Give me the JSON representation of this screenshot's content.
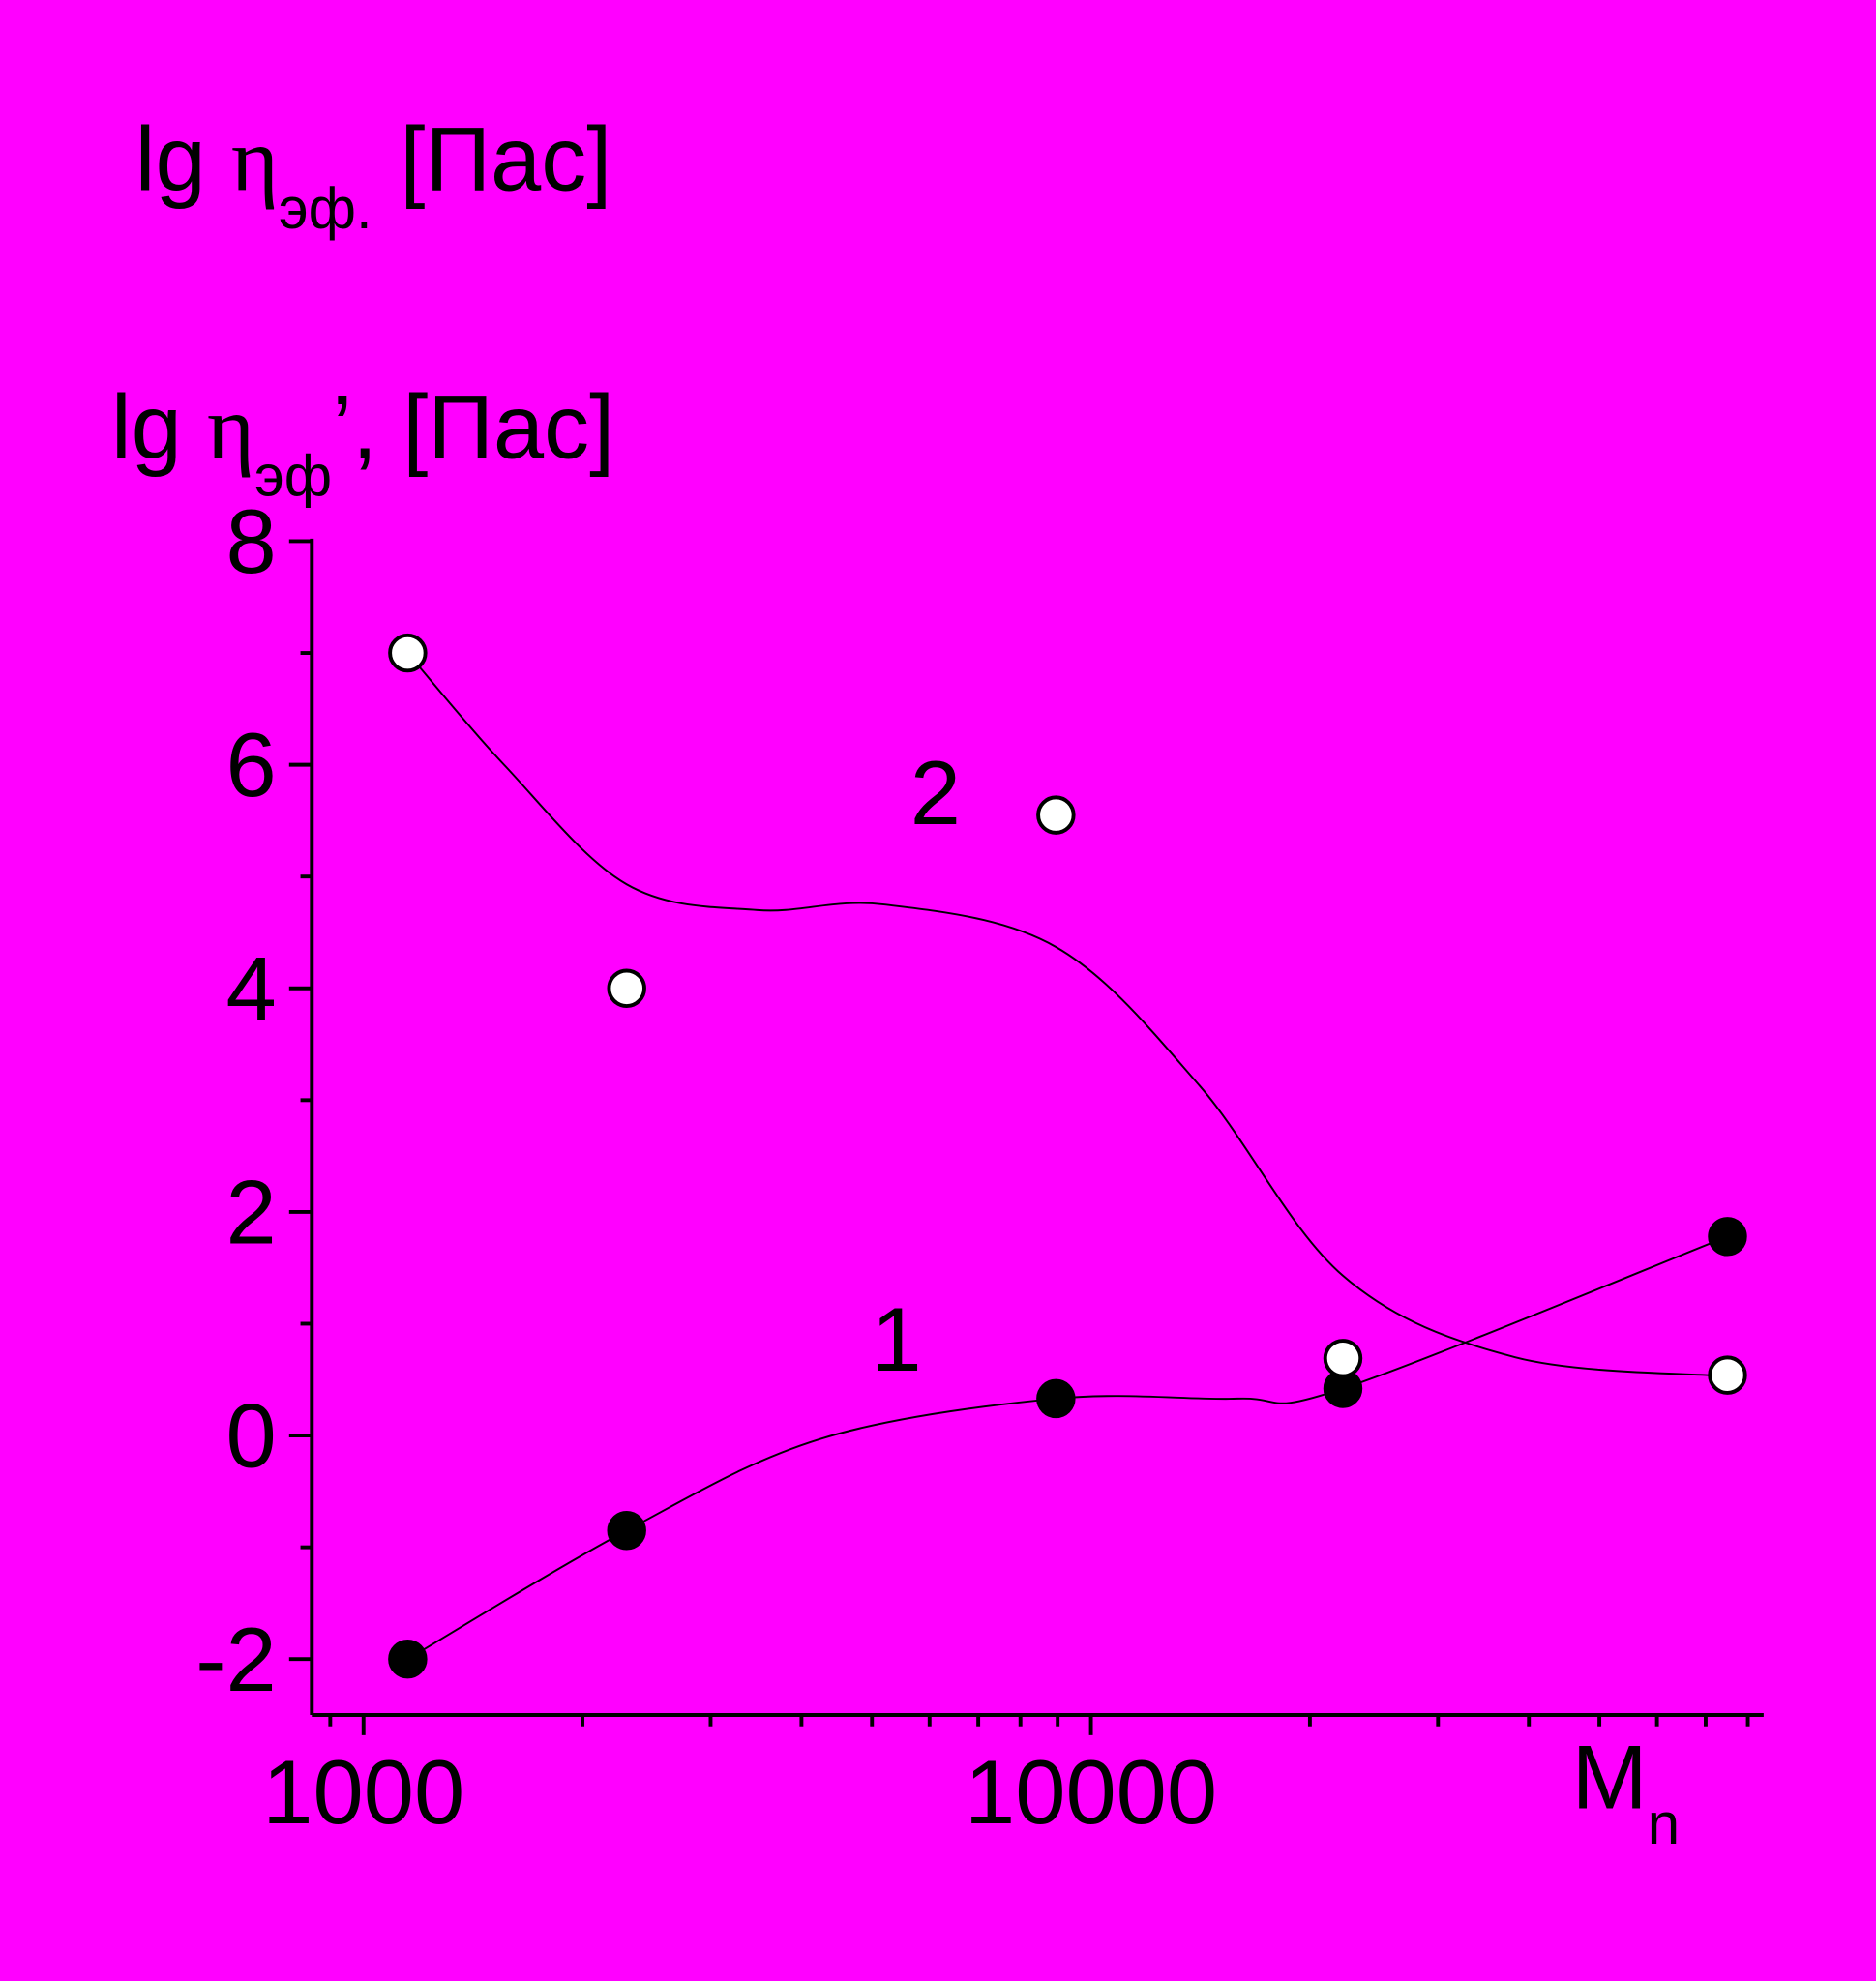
{
  "chart_data": {
    "type": "scatter",
    "title": {
      "main": "lg",
      "eta": "η",
      "sub": "эф.",
      "unit": "[Пас]"
    },
    "y_label": {
      "main": "lg",
      "eta": "η",
      "sub": "эф",
      "unit": "’, [Пас]"
    },
    "x_label": {
      "main": "M",
      "sub": "n"
    },
    "background": "#ff00ff",
    "x_log": true,
    "xlim": [
      849,
      84100
    ],
    "ylim": [
      -2.5,
      8
    ],
    "xticks": [
      1000,
      10000
    ],
    "xminor_ticks": [
      900,
      2000,
      3000,
      4000,
      5000,
      6000,
      7000,
      8000,
      9000,
      20000,
      30000,
      40000,
      50000,
      60000,
      70000,
      80000
    ],
    "yticks": [
      -2,
      0,
      2,
      4,
      6,
      8
    ],
    "yminor_ticks": [
      -1,
      1,
      3,
      5,
      7
    ],
    "series": [
      {
        "name": "1",
        "marker": "filled",
        "color": "#000000",
        "x": [
          1150,
          2300,
          8950,
          22200,
          75000
        ],
        "values": [
          -2.0,
          -0.85,
          0.33,
          0.42,
          1.78
        ],
        "curve": {
          "x": [
            1150,
            2300,
            4250,
            8950,
            15900,
            22200,
            75000
          ],
          "y": [
            -2.0,
            -0.85,
            -0.03,
            0.33,
            0.33,
            0.42,
            1.78
          ]
        }
      },
      {
        "name": "2",
        "marker": "open",
        "color": "#ffffff",
        "x": [
          1150,
          2300,
          8950,
          22200,
          75000
        ],
        "values": [
          7.0,
          4.0,
          5.55,
          0.69,
          0.54
        ],
        "curve": {
          "x": [
            1150,
            1560,
            2300,
            3480,
            5190,
            8950,
            14100,
            22200,
            38300,
            75000
          ],
          "y": [
            7.0,
            6.0,
            4.93,
            4.7,
            4.75,
            4.37,
            3.13,
            1.43,
            0.7,
            0.53
          ]
        }
      }
    ]
  }
}
